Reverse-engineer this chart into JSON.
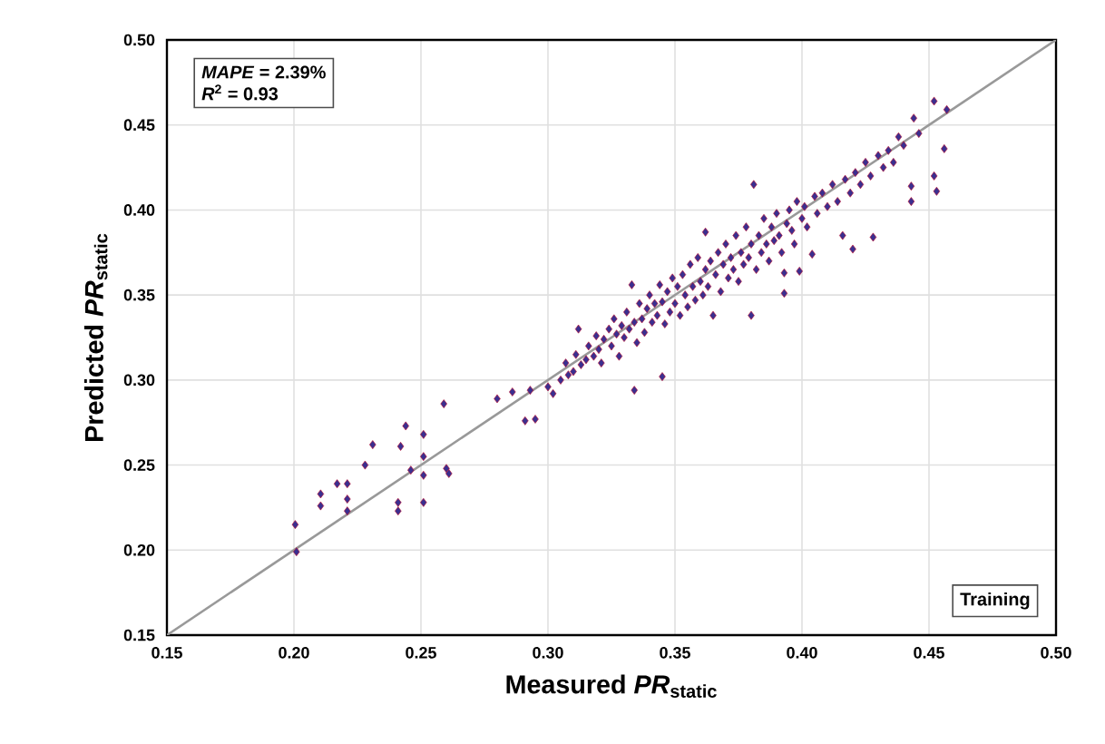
{
  "chart_data": {
    "type": "scatter",
    "xlabel": "Measured *PR*$_{static}$",
    "ylabel": "Predicted *PR*$_{static}$",
    "annotations": [
      "*MAPE* = 2.39%",
      "*R*$^{2}$ = 0.93",
      "Training"
    ],
    "xlim": [
      0.15,
      0.5
    ],
    "ylim": [
      0.15,
      0.5
    ],
    "xticks": [
      0.15,
      {
        "value": 0.2,
        "label": "0.20"
      },
      0.25,
      {
        "value": 0.3,
        "label": "0.30"
      },
      0.35,
      {
        "value": 0.4,
        "label": "0.40"
      },
      0.45,
      {
        "value": 0.5,
        "label": "0.50"
      }
    ],
    "yticks": [
      0.15,
      {
        "value": 0.2,
        "label": "0.20"
      },
      0.25,
      {
        "value": 0.3,
        "label": "0.30"
      },
      0.35,
      {
        "value": 0.4,
        "label": "0.40"
      },
      0.45,
      {
        "value": 0.5,
        "label": "0.50"
      }
    ],
    "grid": true,
    "marker": "diamond",
    "series": [
      {
        "type": "line",
        "color": "#999999",
        "marker": "none",
        "line_style": "solid",
        "x": [
          0.15,
          0.5
        ],
        "values": [
          0.15,
          0.5
        ]
      },
      {
        "color": "#3b2f8f",
        "x": [
          0.2005,
          0.201,
          0.2105,
          0.2105,
          0.217,
          0.221,
          0.221,
          0.221,
          0.228,
          0.231,
          0.242,
          0.244,
          0.241,
          0.241,
          0.246,
          0.251,
          0.251,
          0.251,
          0.251,
          0.259,
          0.26,
          0.261,
          0.28,
          0.286,
          0.291,
          0.295,
          0.293,
          0.3,
          0.302,
          0.305,
          0.307,
          0.308,
          0.31,
          0.311,
          0.312,
          0.313,
          0.315,
          0.316,
          0.318,
          0.319,
          0.32,
          0.321,
          0.322,
          0.324,
          0.325,
          0.326,
          0.327,
          0.328,
          0.329,
          0.33,
          0.331,
          0.332,
          0.333,
          0.334,
          0.334,
          0.335,
          0.336,
          0.337,
          0.338,
          0.339,
          0.34,
          0.341,
          0.342,
          0.343,
          0.344,
          0.345,
          0.345,
          0.346,
          0.347,
          0.348,
          0.349,
          0.35,
          0.351,
          0.352,
          0.353,
          0.354,
          0.355,
          0.356,
          0.357,
          0.358,
          0.359,
          0.36,
          0.361,
          0.362,
          0.362,
          0.363,
          0.364,
          0.365,
          0.366,
          0.367,
          0.368,
          0.369,
          0.37,
          0.371,
          0.372,
          0.373,
          0.374,
          0.375,
          0.376,
          0.377,
          0.378,
          0.379,
          0.38,
          0.38,
          0.381,
          0.382,
          0.383,
          0.384,
          0.385,
          0.386,
          0.387,
          0.388,
          0.389,
          0.39,
          0.391,
          0.392,
          0.393,
          0.393,
          0.394,
          0.395,
          0.396,
          0.397,
          0.398,
          0.399,
          0.4,
          0.401,
          0.402,
          0.404,
          0.405,
          0.406,
          0.408,
          0.41,
          0.412,
          0.414,
          0.416,
          0.417,
          0.419,
          0.42,
          0.421,
          0.423,
          0.425,
          0.427,
          0.428,
          0.43,
          0.432,
          0.434,
          0.436,
          0.438,
          0.44,
          0.443,
          0.443,
          0.444,
          0.446,
          0.452,
          0.452,
          0.453,
          0.456,
          0.457
        ],
        "values": [
          0.215,
          0.199,
          0.233,
          0.226,
          0.239,
          0.239,
          0.23,
          0.223,
          0.25,
          0.262,
          0.261,
          0.273,
          0.228,
          0.223,
          0.247,
          0.268,
          0.255,
          0.244,
          0.228,
          0.286,
          0.248,
          0.245,
          0.289,
          0.293,
          0.276,
          0.277,
          0.294,
          0.296,
          0.292,
          0.3,
          0.31,
          0.303,
          0.305,
          0.315,
          0.33,
          0.309,
          0.312,
          0.32,
          0.314,
          0.326,
          0.318,
          0.31,
          0.324,
          0.33,
          0.32,
          0.336,
          0.327,
          0.314,
          0.332,
          0.325,
          0.34,
          0.33,
          0.356,
          0.294,
          0.334,
          0.322,
          0.345,
          0.336,
          0.328,
          0.342,
          0.35,
          0.334,
          0.345,
          0.338,
          0.356,
          0.302,
          0.346,
          0.333,
          0.352,
          0.34,
          0.36,
          0.345,
          0.355,
          0.338,
          0.362,
          0.35,
          0.343,
          0.368,
          0.355,
          0.347,
          0.372,
          0.358,
          0.35,
          0.387,
          0.365,
          0.355,
          0.37,
          0.338,
          0.362,
          0.375,
          0.352,
          0.368,
          0.38,
          0.36,
          0.372,
          0.365,
          0.385,
          0.358,
          0.375,
          0.368,
          0.39,
          0.372,
          0.338,
          0.38,
          0.415,
          0.365,
          0.385,
          0.375,
          0.395,
          0.38,
          0.37,
          0.39,
          0.382,
          0.398,
          0.385,
          0.375,
          0.351,
          0.363,
          0.392,
          0.4,
          0.388,
          0.38,
          0.405,
          0.364,
          0.395,
          0.402,
          0.39,
          0.374,
          0.408,
          0.398,
          0.41,
          0.402,
          0.415,
          0.405,
          0.385,
          0.418,
          0.41,
          0.377,
          0.422,
          0.415,
          0.428,
          0.42,
          0.384,
          0.432,
          0.425,
          0.435,
          0.428,
          0.443,
          0.438,
          0.414,
          0.405,
          0.454,
          0.445,
          0.464,
          0.42,
          0.411,
          0.436,
          0.459
        ]
      }
    ]
  }
}
